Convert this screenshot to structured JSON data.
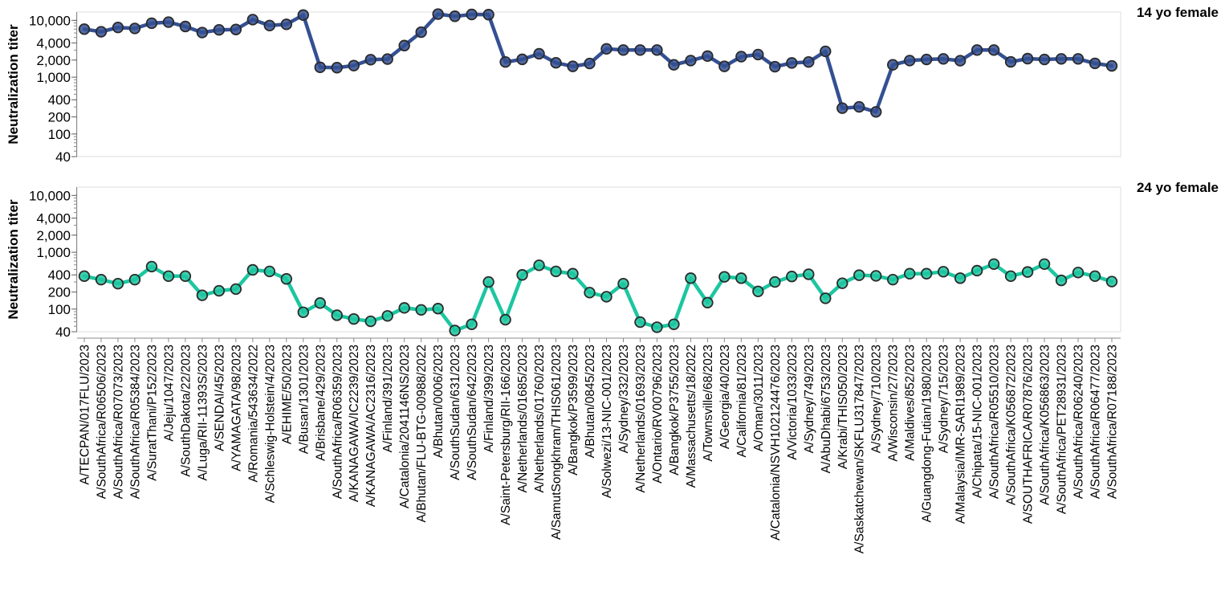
{
  "chart_data": {
    "type": "line",
    "y_scale": "log",
    "grid": false,
    "ylabel": "Neutralization titer",
    "ylim": [
      40,
      14000
    ],
    "yticks": [
      40,
      100,
      200,
      400,
      1000,
      2000,
      4000,
      10000
    ],
    "ytick_labels": [
      "40",
      "100",
      "200",
      "400",
      "1,000",
      "2,000",
      "4,000",
      "10,000"
    ],
    "x": [
      "A/TECPAN/017FLU/2023",
      "A/SouthAfrica/R06506/2023",
      "A/SouthAfrica/R07073/2023",
      "A/SouthAfrica/R05384/2023",
      "A/SuratThani/P152/2023",
      "A/Jeju/1047/2023",
      "A/SouthDakota/22/2023",
      "A/Luga/RII-11393S/2023",
      "A/SENDAI/45/2023",
      "A/YAMAGATA/98/2023",
      "A/Romania/543634/2022",
      "A/Schleswig-Holstein/4/2023",
      "A/EHIME/50/2023",
      "A/Busan/1301/2023",
      "A/Brisbane/429/2023",
      "A/SouthAfrica/R06359/2023",
      "A/KANAGAWA/IC2239/2023",
      "A/KANAGAWA/AC2316/2023",
      "A/Finland/391/2023",
      "A/Catalonia/2041146NS/2023",
      "A/Bhutan/FLU-BTG-00988/2022",
      "A/Bhutan/0006/2023",
      "A/SouthSudan/631/2023",
      "A/SouthSudan/642/2023",
      "A/Finland/399/2023",
      "A/Saint-Petersburg/RII-166/2023",
      "A/Netherlands/01685/2023",
      "A/Netherlands/01760/2023",
      "A/SamutSongkhram/THIS061/2023",
      "A/Bangkok/P3599/2023",
      "A/Bhutan/0845/2023",
      "A/Solwezi/13-NIC-001/2023",
      "A/Sydney/332/2023",
      "A/Netherlands/01693/2023",
      "A/Ontario/RV00796/2023",
      "A/Bangkok/P3755/2023",
      "A/Massachusetts/18/2022",
      "A/Townsville/68/2023",
      "A/Georgia/40/2023",
      "A/California/81/2023",
      "A/Oman/3011/2023",
      "A/Catalonia/NSVH102124476/2023",
      "A/Victoria/1033/2023",
      "A/Sydney/749/2023",
      "A/AbuDhabi/6753/2023",
      "A/Krabi/THIS050/2023",
      "A/Saskatchewan/SKFLU317847/2023",
      "A/Sydney/710/2023",
      "A/Wisconsin/27/2023",
      "A/Maldives/852/2023",
      "A/Guangdong-Futian/1980/2023",
      "A/Sydney/715/2023",
      "A/Malaysia/IMR-SARI1989/2023",
      "A/Chipata/15-NIC-001/2023",
      "A/SouthAfrica/R05510/2023",
      "A/SouthAfrica/K056872/2023",
      "A/SOUTHAFRICA/R07876/2023",
      "A/SouthAfrica/K056863/2023",
      "A/SouthAfrica/PET28931/2023",
      "A/SouthAfrica/R06240/2023",
      "A/SouthAfrica/R06477/2023",
      "A/SouthAfrica/R07188/2023"
    ],
    "series": [
      {
        "name": "14 yo female",
        "color": "#345093",
        "values": [
          7000,
          6300,
          7500,
          7200,
          8900,
          9300,
          7800,
          6100,
          6800,
          6900,
          10300,
          8100,
          8500,
          12400,
          1490,
          1470,
          1600,
          2030,
          2080,
          3600,
          6200,
          12900,
          11800,
          12700,
          12600,
          1850,
          2060,
          2580,
          1790,
          1550,
          1740,
          3150,
          3000,
          3000,
          3000,
          1650,
          1960,
          2350,
          1550,
          2300,
          2500,
          1530,
          1780,
          1850,
          2850,
          285,
          300,
          245,
          1650,
          1960,
          2050,
          2100,
          1950,
          3000,
          3000,
          1860,
          2120,
          2050,
          2100,
          2100,
          1750,
          1580
        ]
      },
      {
        "name": "24 yo female",
        "color": "#1cc6a0",
        "values": [
          380,
          330,
          280,
          330,
          560,
          380,
          380,
          175,
          210,
          225,
          490,
          460,
          340,
          88,
          128,
          78,
          67,
          61,
          76,
          105,
          97,
          102,
          42,
          54,
          300,
          65,
          400,
          590,
          460,
          420,
          195,
          165,
          280,
          59,
          48,
          54,
          350,
          130,
          370,
          350,
          205,
          300,
          375,
          410,
          155,
          285,
          395,
          385,
          330,
          420,
          420,
          455,
          350,
          475,
          620,
          380,
          450,
          620,
          320,
          440,
          380,
          305
        ]
      }
    ]
  }
}
